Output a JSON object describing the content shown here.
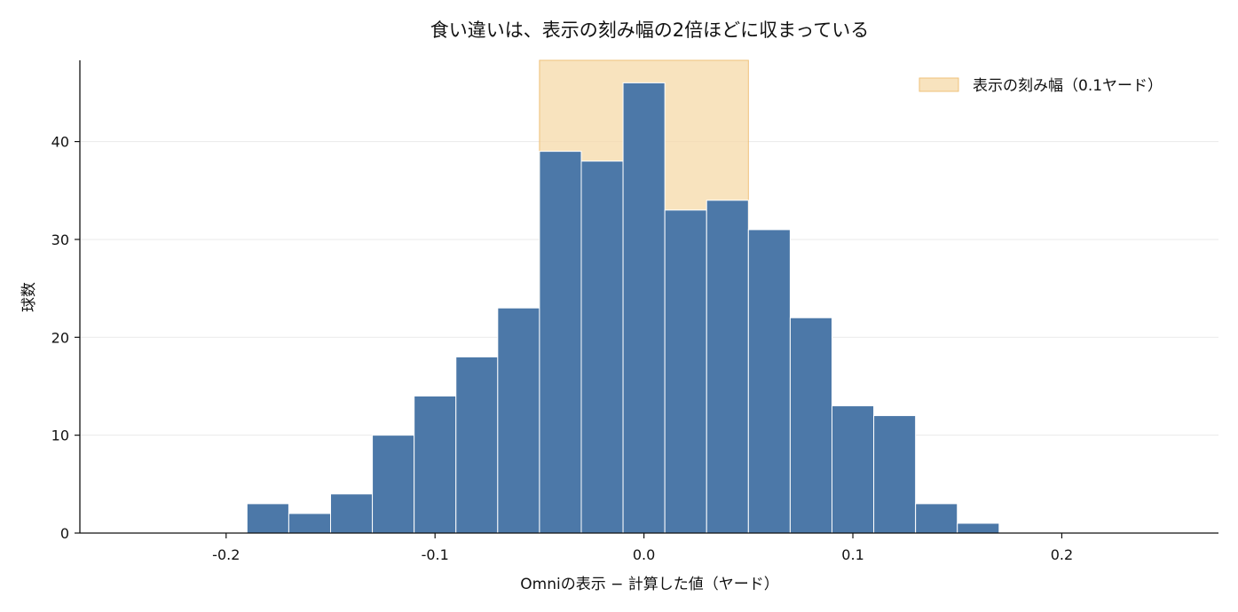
{
  "chart_data": {
    "type": "bar",
    "title": "食い違いは、表示の刻み幅の2倍ほどに収まっている",
    "xlabel": "Omniの表示 − 計算した値（ヤード）",
    "ylabel": "球数",
    "xlim": [
      -0.27,
      0.275
    ],
    "ylim": [
      0,
      48.3
    ],
    "x_ticks": [
      -0.2,
      -0.1,
      0.0,
      0.1,
      0.2
    ],
    "x_tick_labels": [
      "-0.2",
      "-0.1",
      "0.0",
      "0.1",
      "0.2"
    ],
    "y_ticks": [
      0,
      10,
      20,
      30,
      40
    ],
    "y_tick_labels": [
      "0",
      "10",
      "20",
      "30",
      "40"
    ],
    "grid": "horizontal",
    "bin_width": 0.02,
    "bins": [
      {
        "x_start": -0.19,
        "x_end": -0.17,
        "count": 3
      },
      {
        "x_start": -0.17,
        "x_end": -0.15,
        "count": 2
      },
      {
        "x_start": -0.15,
        "x_end": -0.13,
        "count": 4
      },
      {
        "x_start": -0.13,
        "x_end": -0.11,
        "count": 10
      },
      {
        "x_start": -0.11,
        "x_end": -0.09,
        "count": 14
      },
      {
        "x_start": -0.09,
        "x_end": -0.07,
        "count": 18
      },
      {
        "x_start": -0.07,
        "x_end": -0.05,
        "count": 23
      },
      {
        "x_start": -0.05,
        "x_end": -0.03,
        "count": 39
      },
      {
        "x_start": -0.03,
        "x_end": -0.01,
        "count": 38
      },
      {
        "x_start": -0.01,
        "x_end": 0.01,
        "count": 46
      },
      {
        "x_start": 0.01,
        "x_end": 0.03,
        "count": 33
      },
      {
        "x_start": 0.03,
        "x_end": 0.05,
        "count": 34
      },
      {
        "x_start": 0.05,
        "x_end": 0.07,
        "count": 31
      },
      {
        "x_start": 0.07,
        "x_end": 0.09,
        "count": 22
      },
      {
        "x_start": 0.09,
        "x_end": 0.11,
        "count": 13
      },
      {
        "x_start": 0.11,
        "x_end": 0.13,
        "count": 12
      },
      {
        "x_start": 0.13,
        "x_end": 0.15,
        "count": 3
      },
      {
        "x_start": 0.15,
        "x_end": 0.17,
        "count": 1
      }
    ],
    "shaded_band": {
      "x_start": -0.05,
      "x_end": 0.05,
      "label": "表示の刻み幅（0.1ヤード）",
      "color": "#f5d9a8"
    },
    "bar_color": "#4c78a8",
    "legend_position": "top-right"
  }
}
